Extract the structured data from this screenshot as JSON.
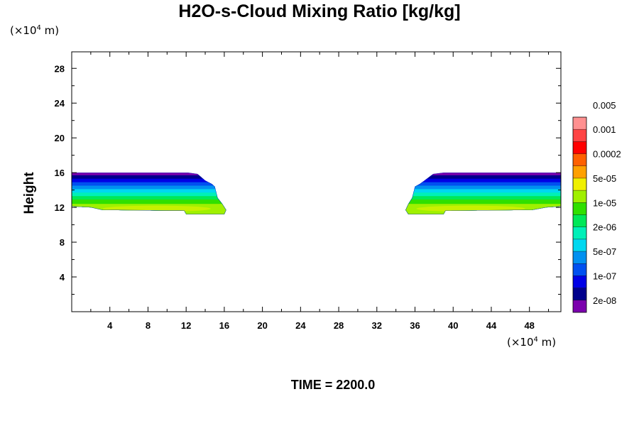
{
  "title": "H2O-s-Cloud Mixing Ratio [kg/kg]",
  "y_unit": {
    "prefix": "(×10",
    "exp": "4",
    "suffix": " m)"
  },
  "x_unit": {
    "prefix": "(×10",
    "exp": "4",
    "suffix": " m)"
  },
  "ylabel": "Height",
  "time_label": "TIME = 2200.0",
  "chart_data": {
    "type": "heatmap",
    "title": "H2O-s-Cloud Mixing Ratio [kg/kg]",
    "ylabel": "Height",
    "xlim": [
      0,
      51.3
    ],
    "ylim": [
      0,
      29.9
    ],
    "x_ticks": [
      4,
      8,
      12,
      16,
      20,
      24,
      28,
      32,
      36,
      40,
      44,
      48
    ],
    "y_ticks": [
      4,
      8,
      12,
      16,
      20,
      24,
      28
    ],
    "colorbar": {
      "colors": [
        "#7b00ad",
        "#00008c",
        "#0000e6",
        "#0050f0",
        "#0090f0",
        "#00d8f0",
        "#00f0b8",
        "#00e858",
        "#30e000",
        "#a0f000",
        "#f0f000",
        "#ffa000",
        "#ff6000",
        "#ff0000",
        "#ff4444",
        "#ff9090"
      ],
      "labels": [
        "2e-08",
        "1e-07",
        "5e-07",
        "2e-06",
        "1e-05",
        "5e-05",
        "0.0002",
        "0.001",
        "0.005"
      ],
      "label_levels": [
        1,
        3,
        5,
        7,
        9,
        11,
        13,
        15,
        17
      ]
    },
    "cloud_regions": [
      {
        "name": "left",
        "x_range": [
          0,
          16.2
        ],
        "y_range": [
          11.2,
          16.0
        ]
      },
      {
        "name": "right",
        "x_range": [
          35.0,
          51.3
        ],
        "y_range": [
          11.2,
          16.0
        ]
      }
    ],
    "cloud_bands": [
      {
        "color": "#7b00ad",
        "y_top": 16.0
      },
      {
        "color": "#00008c",
        "y_top": 15.7
      },
      {
        "color": "#0000e6",
        "y_top": 15.3
      },
      {
        "color": "#0050f0",
        "y_top": 14.9
      },
      {
        "color": "#0090f0",
        "y_top": 14.5
      },
      {
        "color": "#00d8f0",
        "y_top": 14.1
      },
      {
        "color": "#00f0b8",
        "y_top": 13.7
      },
      {
        "color": "#00e858",
        "y_top": 13.3
      },
      {
        "color": "#30e000",
        "y_top": 12.9
      },
      {
        "color": "#a0f000",
        "y_top": 12.4
      }
    ],
    "cloud_core": {
      "color": "#c8f000",
      "y_range": [
        11.5,
        12.2
      ]
    }
  }
}
